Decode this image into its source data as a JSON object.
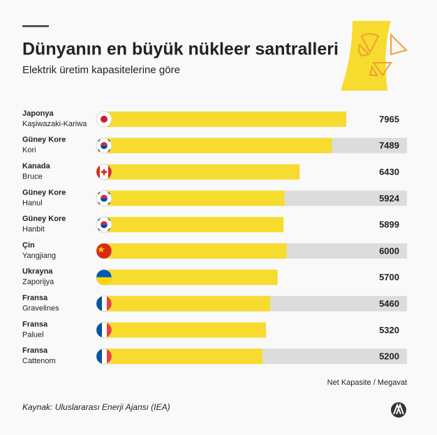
{
  "chart_data": {
    "type": "bar",
    "title": "Dünyanın en büyük nükleer santralleri",
    "subtitle": "Elektrik üretim kapasitelerine göre",
    "countries": [
      "Japonya",
      "Güney Kore",
      "Kanada",
      "Güney Kore",
      "Güney Kore",
      "Çin",
      "Ukrayna",
      "Fransa",
      "Fransa",
      "Fransa"
    ],
    "categories": [
      "Kaşiwazaki-Kariwa",
      "Kori",
      "Bruce",
      "Hanul",
      "Hanbit",
      "Yangjiang",
      "Zaporijya",
      "Gravelines",
      "Paluel",
      "Cattenom"
    ],
    "values": [
      7965,
      7489,
      6430,
      5924,
      5899,
      6000,
      5700,
      5460,
      5320,
      5200
    ],
    "color": "#f7db2f",
    "unit_note": "Net Kapasite / Megavat",
    "source": "Kaynak: Uluslararası Enerji Ajansı (IEA)"
  }
}
